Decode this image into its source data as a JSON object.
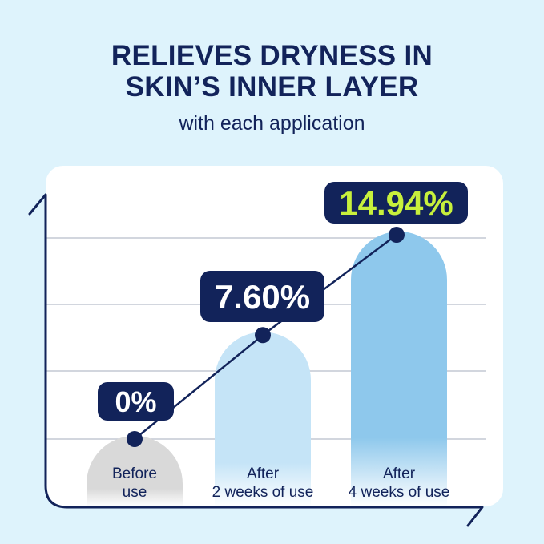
{
  "title_lines": [
    "RELIEVES DRYNESS IN",
    "SKIN’S INNER LAYER"
  ],
  "subtitle": "with each application",
  "chart_data": {
    "type": "bar",
    "categories": [
      "Before\nuse",
      "After\n2 weeks of use",
      "After\n4 weeks of use"
    ],
    "category_lines": [
      [
        "Before",
        "use"
      ],
      [
        "After",
        "2 weeks of use"
      ],
      [
        "After",
        "4 weeks of use"
      ]
    ],
    "values": [
      0,
      7.6,
      14.94
    ],
    "data_labels": [
      "0%",
      "7.60%",
      "14.94%"
    ],
    "ylim": [
      0,
      15
    ],
    "grid": true,
    "overlay_line": true,
    "colors": {
      "navy": "#12235a",
      "bar_before": "#d9d9d9",
      "bar_2w": "#c5e4f7",
      "bar_4w": "#8ec8ec",
      "highlight_label": "#c8f03c",
      "label_text": "#ffffff",
      "grid": "#c4c8d4"
    }
  }
}
